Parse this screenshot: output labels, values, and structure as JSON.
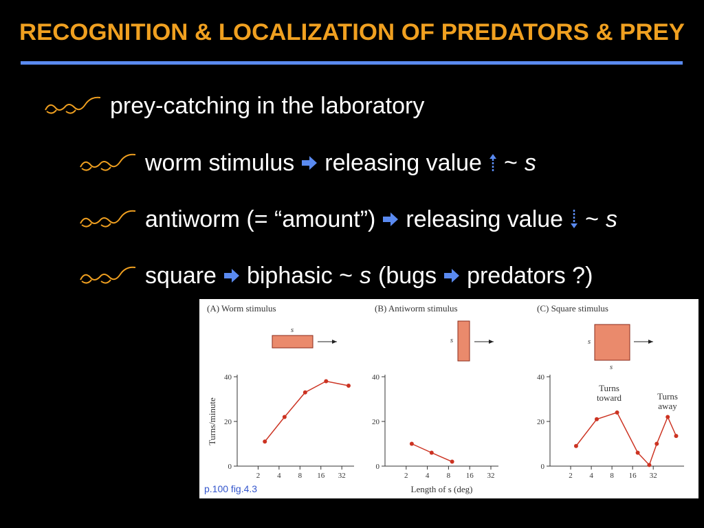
{
  "title": "RECOGNITION & LOCALIZATION OF PREDATORS & PREY",
  "bullets": [
    [
      "prey-catching in the laboratory"
    ],
    [
      "worm stimulus",
      "releasing value",
      "~",
      "s"
    ],
    [
      "antiworm (= “amount”)",
      "releasing value",
      "~",
      "s"
    ],
    [
      "square",
      "biphasic ~",
      "s",
      "(bugs",
      "predators ?)"
    ]
  ],
  "footnote": "p.100 fig.4.3",
  "chart_data": [
    {
      "type": "line",
      "title": "(A) Worm stimulus",
      "stimulus_labels": [
        "s"
      ],
      "ylabel": "Turns/minute",
      "x": [
        2.5,
        4.8,
        9.5,
        19,
        40
      ],
      "values": [
        11,
        22,
        33,
        38,
        36
      ],
      "color": "#cc3322",
      "xscale": "log",
      "xlim": [
        1,
        48
      ],
      "xticks": [
        2,
        4,
        8,
        16,
        32
      ],
      "ylim": [
        0,
        40
      ],
      "yticks": [
        0,
        20,
        40
      ]
    },
    {
      "type": "line",
      "title": "(B) Antiworm stimulus",
      "stimulus_labels": [
        "s"
      ],
      "xlabel": "Length of s (deg)",
      "x": [
        2.4,
        4.6,
        9
      ],
      "values": [
        10,
        6,
        2
      ],
      "color": "#cc3322",
      "xscale": "log",
      "xlim": [
        1,
        41
      ],
      "xticks": [
        2,
        4,
        8,
        16,
        32
      ],
      "ylim": [
        0,
        40
      ],
      "yticks": [
        0,
        20,
        40
      ]
    },
    {
      "type": "line",
      "title": "(C) Square stimulus",
      "stimulus_labels": [
        "s",
        "s"
      ],
      "annotations": [
        [
          "Turns",
          "toward"
        ],
        [
          "Turns",
          "away"
        ]
      ],
      "x": [
        2.4,
        4.8,
        9.5,
        19,
        28,
        36,
        52,
        69
      ],
      "values": [
        9,
        21,
        24,
        6,
        0.5,
        10,
        22,
        13.5
      ],
      "color": "#cc3322",
      "xscale": "log",
      "xlim": [
        1,
        90
      ],
      "xticks": [
        2,
        4,
        8,
        16,
        32
      ],
      "ylim": [
        0,
        40
      ],
      "yticks": [
        0,
        20,
        40
      ]
    }
  ]
}
